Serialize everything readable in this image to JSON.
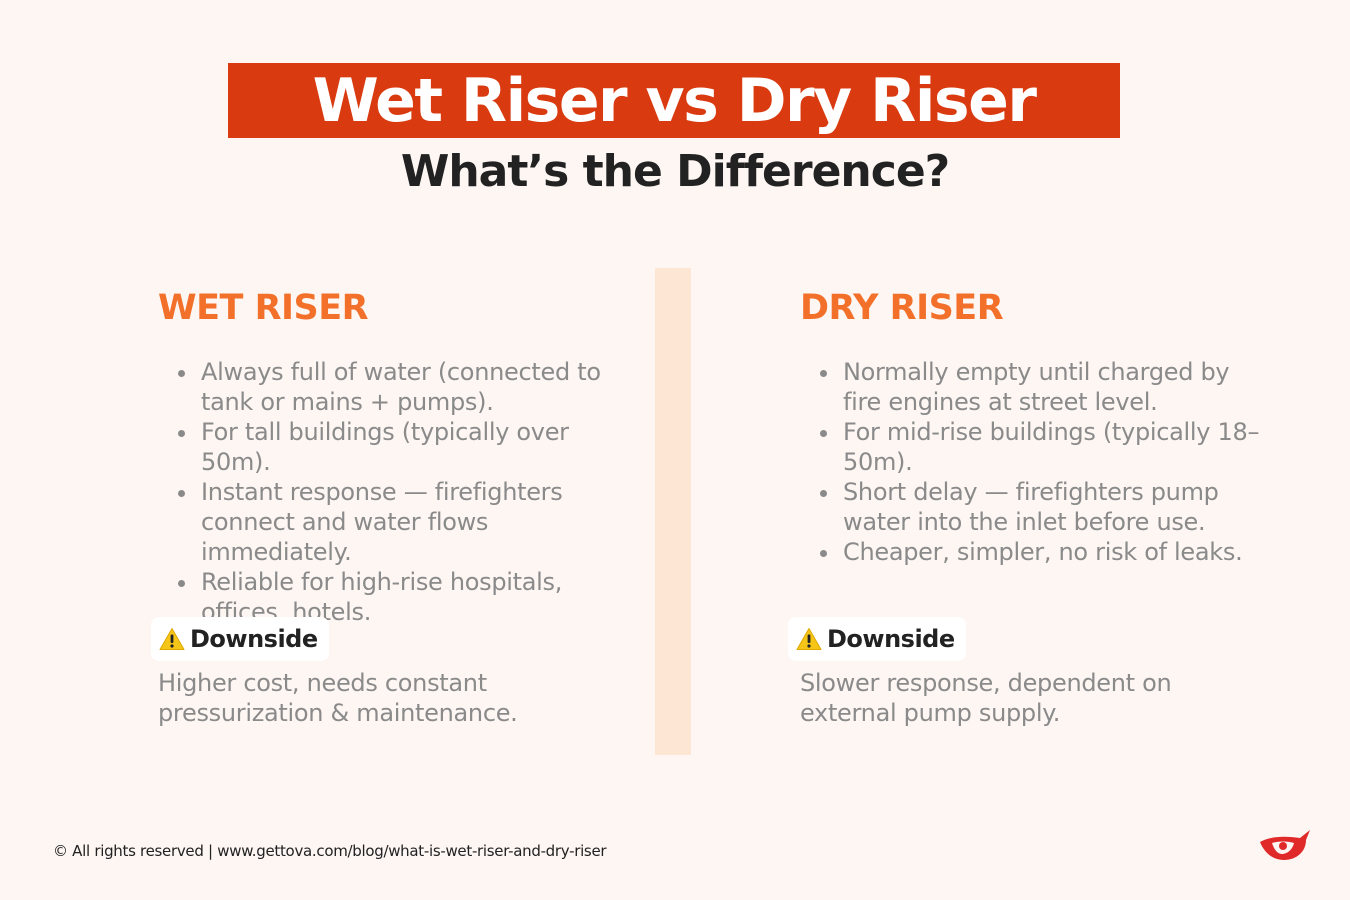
{
  "header": {
    "title": "Wet Riser vs Dry Riser",
    "subtitle": "What’s the Difference?"
  },
  "columns": [
    {
      "heading": "WET RISER",
      "bullets": [
        "Always full of water (connected to tank or mains + pumps).",
        "For tall buildings (typically over 50m).",
        "Instant response — firefighters connect and water flows immediately.",
        "Reliable for high-rise hospitals, offices, hotels."
      ],
      "downside_label": "Downside",
      "downside_text": "Higher cost, needs constant pressurization & maintenance."
    },
    {
      "heading": "DRY RISER",
      "bullets": [
        "Normally empty until charged by fire engines at street level.",
        "For mid-rise buildings (typically 18–50m).",
        "Short delay — firefighters pump water into the inlet before use.",
        "Cheaper, simpler, no risk of leaks."
      ],
      "downside_label": "Downside",
      "downside_text": "Slower response, dependent on external pump supply."
    }
  ],
  "footer": {
    "text": "© All rights reserved | www.gettova.com/blog/what-is-wet-riser-and-dry-riser"
  },
  "icons": {
    "warning": "warning-icon",
    "logo": "brand-logo-icon"
  },
  "colors": {
    "title_bar": "#d93a0f",
    "heading": "#f3702a",
    "body_text": "#8a8a8a",
    "divider": "#fde7d4",
    "background": "#fdf6f3"
  }
}
